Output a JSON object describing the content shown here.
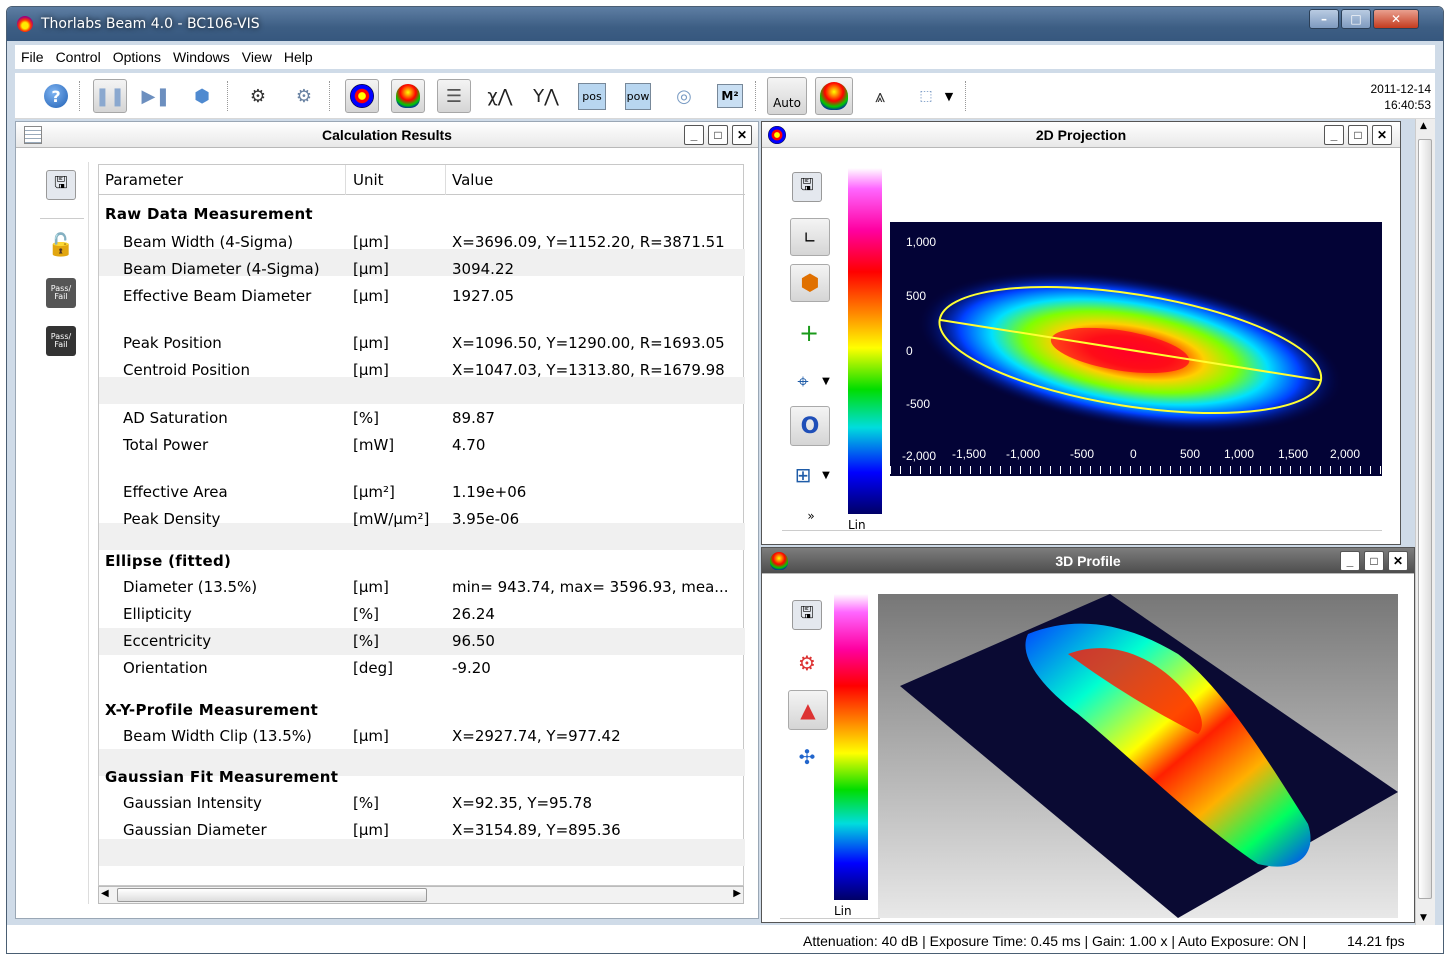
{
  "window": {
    "title": "Thorlabs Beam 4.0 - BC106-VIS",
    "min": "–",
    "max": "□",
    "close": "✕"
  },
  "menu": [
    "File",
    "Control",
    "Options",
    "Windows",
    "View",
    "Help"
  ],
  "toolbar": {
    "auto_label": "Auto",
    "pos_label": "pos",
    "pow_label": "pow",
    "m2_label": "M²",
    "date": "2011-12-14",
    "time": "16:40:53"
  },
  "calc": {
    "title": "Calculation Results",
    "headers": [
      "Parameter",
      "Unit",
      "Value"
    ],
    "sections": [
      {
        "title": "Raw Data Measurement",
        "rows": [
          [
            "Beam Width (4-Sigma)",
            "[µm]",
            "X=3696.09, Y=1152.20, R=3871.51"
          ],
          [
            "Beam Diameter (4-Sigma)",
            "[µm]",
            "3094.22"
          ],
          [
            "Effective Beam Diameter",
            "[µm]",
            "1927.05"
          ],
          [
            "Peak Position",
            "[µm]",
            "X=1096.50, Y=1290.00, R=1693.05"
          ],
          [
            "Centroid Position",
            "[µm]",
            "X=1047.03, Y=1313.80, R=1679.98"
          ],
          [
            "AD Saturation",
            "[%]",
            "89.87"
          ],
          [
            "Total Power",
            "[mW]",
            "4.70"
          ],
          [
            "Effective Area",
            "[µm²]",
            "1.19e+06"
          ],
          [
            "Peak Density",
            "[mW/µm²]",
            "3.95e-06"
          ]
        ]
      },
      {
        "title": "Ellipse (fitted)",
        "rows": [
          [
            "Diameter (13.5%)",
            "[µm]",
            "min= 943.74, max= 3596.93, mea..."
          ],
          [
            "Ellipticity",
            "[%]",
            "26.24"
          ],
          [
            "Eccentricity",
            "[%]",
            "96.50"
          ],
          [
            "Orientation",
            "[deg]",
            "-9.20"
          ]
        ]
      },
      {
        "title": "X-Y-Profile Measurement",
        "rows": [
          [
            "Beam Width Clip (13.5%)",
            "[µm]",
            "X=2927.74, Y=977.42"
          ]
        ]
      },
      {
        "title": "Gaussian Fit Measurement",
        "rows": [
          [
            "Gaussian Intensity",
            "[%]",
            "X=92.35, Y=95.78"
          ],
          [
            "Gaussian Diameter",
            "[µm]",
            "X=3154.89, Y=895.36"
          ]
        ]
      }
    ]
  },
  "proj2d": {
    "title": "2D Projection",
    "scale_label": "Lin",
    "y_ticks": [
      "1,000",
      "500",
      "0",
      "-500"
    ],
    "x_ticks": [
      "-2,000",
      "-1,500",
      "-1,000",
      "-500",
      "0",
      "500",
      "1,000",
      "1,500",
      "2,000"
    ]
  },
  "prof3d": {
    "title": "3D Profile",
    "scale_label": "Lin"
  },
  "status": {
    "text": "Attenuation: 40 dB |  Exposure Time: 0.45 ms |  Gain: 1.00 x |  Auto Exposure: ON |",
    "fps": "14.21 fps"
  },
  "side": {
    "pass_fail": "Pass/ Fail"
  }
}
